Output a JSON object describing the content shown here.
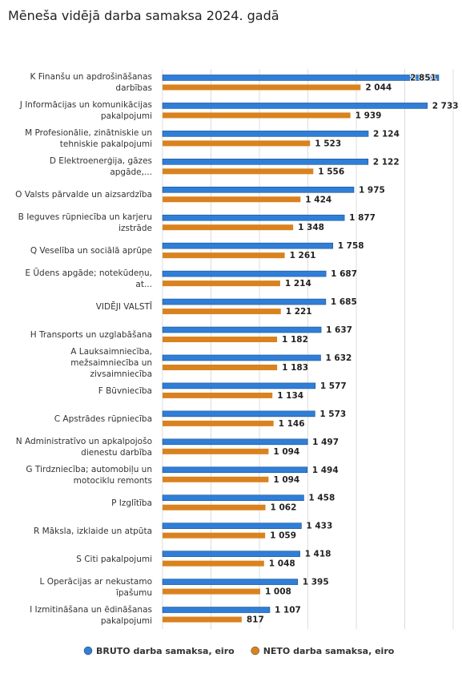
{
  "chart_data": {
    "type": "bar",
    "orientation": "horizontal",
    "title": "Mēneša vidējā darba samaksa 2024. gadā",
    "categories": [
      "K Finanšu un apdrošināšanas darbības",
      "J Informācijas un komunikācijas pakalpojumi",
      "M Profesionālie, zinātniskie un tehniskie pakalpojumi",
      "D Elektroenerģija, gāzes apgāde,...",
      "O Valsts pārvalde un aizsardzība",
      "B Ieguves rūpniecība un karjeru izstrāde",
      "Q Veselība un sociālā aprūpe",
      "E Ūdens apgāde; notekūdeņu, at...",
      "VIDĒJI VALSTĪ",
      "H Transports un uzglabāšana",
      "A Lauksaimniecība, mežsaimniecība un zivsaimniecība",
      "F Būvniecība",
      "C Apstrādes rūpniecība",
      "N Administratīvo un apkalpojošo dienestu darbība",
      "G Tirdzniecība; automobiļu un motociklu remonts",
      "P Izglītība",
      "R Māksla, izklaide un atpūta",
      "S Citi pakalpojumi",
      "L Operācijas ar nekustamo īpašumu",
      "I Izmitināšana un ēdināšanas pakalpojumi"
    ],
    "series": [
      {
        "name": "BRUTO darba samaksa, eiro",
        "color": "#2f7ed8",
        "values": [
          2851,
          2733,
          2124,
          2122,
          1975,
          1877,
          1758,
          1687,
          1685,
          1637,
          1632,
          1577,
          1573,
          1497,
          1494,
          1458,
          1433,
          1418,
          1395,
          1107
        ],
        "value_labels": [
          "2 851",
          "2 733",
          "2 124",
          "2 122",
          "1 975",
          "1 877",
          "1 758",
          "1 687",
          "1 685",
          "1 637",
          "1 632",
          "1 577",
          "1 573",
          "1 497",
          "1 494",
          "1 458",
          "1 433",
          "1 418",
          "1 395",
          "1 107"
        ]
      },
      {
        "name": "NETO darba samaksa, eiro",
        "color": "#d9821e",
        "values": [
          2044,
          1939,
          1523,
          1556,
          1424,
          1348,
          1261,
          1214,
          1221,
          1182,
          1183,
          1134,
          1146,
          1094,
          1094,
          1062,
          1059,
          1048,
          1008,
          817
        ],
        "value_labels": [
          "2 044",
          "1 939",
          "1 523",
          "1 556",
          "1 424",
          "1 348",
          "1 261",
          "1 214",
          "1 221",
          "1 182",
          "1 183",
          "1 134",
          "1 146",
          "1 094",
          "1 094",
          "1 062",
          "1 059",
          "1 048",
          "1 008",
          "817"
        ]
      }
    ],
    "xlim": [
      0,
      3000
    ],
    "xticks": [
      0,
      500,
      1000,
      1500,
      2000,
      2500,
      3000
    ],
    "grid": true,
    "legend": "bottom"
  }
}
